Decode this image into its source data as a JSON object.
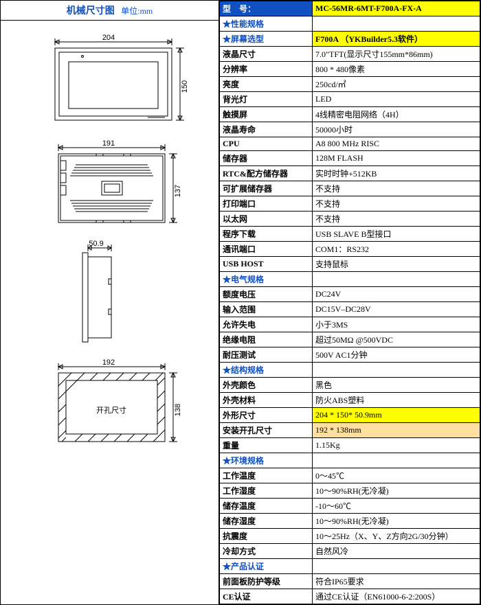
{
  "left": {
    "title": "机械尺寸图",
    "unit": "单位:mm",
    "diagrams": {
      "front": {
        "w": "204",
        "h": "150"
      },
      "back": {
        "w": "191",
        "h": "137"
      },
      "side": {
        "w": "50.9"
      },
      "hole": {
        "w": "192",
        "h": "138",
        "label": "开孔尺寸"
      }
    },
    "colors": {
      "header_text": "#1050c0"
    }
  },
  "right": {
    "colors": {
      "header_bg": "#1050c0",
      "header_text": "#ffffff",
      "highlight_bg": "#ffff00",
      "orange_bg": "#ffe0a0",
      "border": "#000000"
    },
    "rows": [
      {
        "kind": "header",
        "label": "型　号：",
        "value": "MC-56MR-6MT-F700A-FX-A"
      },
      {
        "kind": "cat",
        "label": "★性能规格",
        "value": ""
      },
      {
        "kind": "screen",
        "label": "★屏幕选型",
        "value": "F700A （YKBuilder5.3软件）"
      },
      {
        "kind": "row",
        "label": "液晶尺寸",
        "value": "7.0″TFT(显示尺寸155mm*86mm)"
      },
      {
        "kind": "row",
        "label": "分辨率",
        "value": "800 * 480像素"
      },
      {
        "kind": "row",
        "label": "亮度",
        "value": "250cd/㎡"
      },
      {
        "kind": "row",
        "label": "背光灯",
        "value": "LED"
      },
      {
        "kind": "row",
        "label": "触摸屏",
        "value": "4线精密电阻网络（4H）"
      },
      {
        "kind": "row",
        "label": "液晶寿命",
        "value": "50000小时"
      },
      {
        "kind": "row",
        "label": "CPU",
        "value": "A8 800 MHz RISC"
      },
      {
        "kind": "row",
        "label": "储存器",
        "value": "128M FLASH"
      },
      {
        "kind": "row",
        "label": "RTC&配方储存器",
        "value": "实时时钟+512KB"
      },
      {
        "kind": "row",
        "label": "可扩展储存器",
        "value": "不支持"
      },
      {
        "kind": "row",
        "label": "打印端口",
        "value": "不支持"
      },
      {
        "kind": "row",
        "label": "以太网",
        "value": "不支持"
      },
      {
        "kind": "row",
        "label": "程序下载",
        "value": "USB SLAVE B型接口"
      },
      {
        "kind": "row",
        "label": "通讯端口",
        "value": "COM1：RS232"
      },
      {
        "kind": "row",
        "label": "USB HOST",
        "value": "支持鼠标"
      },
      {
        "kind": "cat",
        "label": "★电气规格",
        "value": ""
      },
      {
        "kind": "row",
        "label": "额度电压",
        "value": "DC24V"
      },
      {
        "kind": "row",
        "label": "输入范围",
        "value": "DC15V–DC28V"
      },
      {
        "kind": "row",
        "label": "允许失电",
        "value": "小于3MS"
      },
      {
        "kind": "row",
        "label": "绝缘电阻",
        "value": "超过50MΩ @500VDC"
      },
      {
        "kind": "row",
        "label": "耐压测试",
        "value": "500V AC1分钟"
      },
      {
        "kind": "cat",
        "label": "★结构规格",
        "value": ""
      },
      {
        "kind": "row",
        "label": "外壳颜色",
        "value": "黑色"
      },
      {
        "kind": "row",
        "label": "外壳材料",
        "value": "防火ABS塑料"
      },
      {
        "kind": "hl",
        "label": "外形尺寸",
        "value": "204 * 150* 50.9mm"
      },
      {
        "kind": "orange",
        "label": "安装开孔尺寸",
        "value": "192 * 138mm"
      },
      {
        "kind": "row",
        "label": "重量",
        "value": "1.15Kg"
      },
      {
        "kind": "cat",
        "label": "★环境规格",
        "value": ""
      },
      {
        "kind": "row",
        "label": "工作温度",
        "value": "0～45℃"
      },
      {
        "kind": "row",
        "label": "工作湿度",
        "value": "10～90%RH(无冷凝)"
      },
      {
        "kind": "row",
        "label": "储存温度",
        "value": "-10～60℃"
      },
      {
        "kind": "row",
        "label": "储存湿度",
        "value": "10～90%RH(无冷凝)"
      },
      {
        "kind": "row",
        "label": "抗震度",
        "value": "10～25Hz（X、Y、Z方向2G/30分钟）"
      },
      {
        "kind": "row",
        "label": "冷却方式",
        "value": "自然风冷"
      },
      {
        "kind": "cat",
        "label": "★产品认证",
        "value": ""
      },
      {
        "kind": "row",
        "label": "前面板防护等级",
        "value": "符合IP65要求"
      },
      {
        "kind": "row",
        "label": "CE认证",
        "value": "通过CE认证（EN61000-6-2:200S）"
      }
    ]
  }
}
